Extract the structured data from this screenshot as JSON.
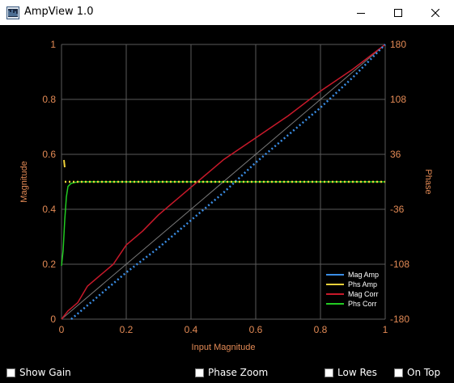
{
  "window": {
    "title": "AmpView 1.0",
    "icons": {
      "app": "app-icon",
      "minimize": "minimize-icon",
      "maximize": "maximize-icon",
      "close": "close-icon"
    }
  },
  "colors": {
    "axis_text": "#e38a55",
    "grid": "#5a5a5a",
    "mag_amp": "#3a8ee6",
    "phs_amp": "#f0d23a",
    "mag_corr": "#c8192a",
    "phs_corr": "#22cc22"
  },
  "chart_data": {
    "type": "line",
    "xlabel": "Input Magnitude",
    "ylabel": "Magnitude",
    "y2label": "Phase",
    "xlim": [
      0,
      1
    ],
    "ylim": [
      0,
      1
    ],
    "y2lim": [
      -180,
      180
    ],
    "xticks": [
      "0",
      "0.2",
      "0.4",
      "0.6",
      "0.8",
      "1"
    ],
    "yticks": [
      "0",
      "0.2",
      "0.4",
      "0.6",
      "0.8",
      "1"
    ],
    "y2ticks": [
      "-180",
      "-108",
      "-36",
      "36",
      "108",
      "180"
    ],
    "grid": true,
    "legend": "bottom-right",
    "reference_line": {
      "x": [
        0,
        1
      ],
      "y": [
        0,
        1
      ]
    },
    "series": [
      {
        "name": "Mag Amp",
        "axis": "left",
        "style": "dotted",
        "x": [
          0.03,
          0.1,
          0.2,
          0.3,
          0.4,
          0.5,
          0.6,
          0.7,
          0.8,
          0.9,
          1.0
        ],
        "y": [
          0.0,
          0.07,
          0.17,
          0.26,
          0.36,
          0.46,
          0.57,
          0.67,
          0.77,
          0.88,
          1.0
        ]
      },
      {
        "name": "Phs Amp",
        "axis": "right",
        "style": "dotted",
        "x": [
          0.01,
          0.015,
          0.02,
          0.03,
          0.05,
          0.1,
          0.2,
          0.4,
          0.6,
          0.8,
          1.0
        ],
        "y": [
          0,
          0,
          0,
          0,
          0,
          0,
          0,
          0,
          0,
          0,
          0
        ]
      },
      {
        "name": "Mag Corr",
        "axis": "left",
        "style": "solid",
        "x": [
          0.0,
          0.02,
          0.05,
          0.08,
          0.12,
          0.16,
          0.2,
          0.25,
          0.3,
          0.35,
          0.4,
          0.45,
          0.5,
          0.6,
          0.7,
          0.8,
          0.9,
          1.0
        ],
        "y": [
          0.0,
          0.03,
          0.06,
          0.12,
          0.16,
          0.2,
          0.27,
          0.32,
          0.38,
          0.43,
          0.48,
          0.53,
          0.58,
          0.66,
          0.74,
          0.83,
          0.91,
          1.0
        ]
      },
      {
        "name": "Phs Corr",
        "axis": "right",
        "style": "solid",
        "x": [
          0.0,
          0.005,
          0.01,
          0.015,
          0.02,
          0.03,
          0.05,
          0.1,
          0.2,
          0.4,
          0.6,
          0.8,
          1.0
        ],
        "y": [
          -110,
          -90,
          -50,
          -20,
          -6,
          -2,
          0,
          0,
          0,
          0,
          0,
          0,
          0
        ]
      }
    ]
  },
  "checkboxes": [
    {
      "label": "Show Gain",
      "checked": false
    },
    {
      "label": "Phase Zoom",
      "checked": false
    },
    {
      "label": "Low Res",
      "checked": false
    },
    {
      "label": "On Top",
      "checked": false
    }
  ]
}
